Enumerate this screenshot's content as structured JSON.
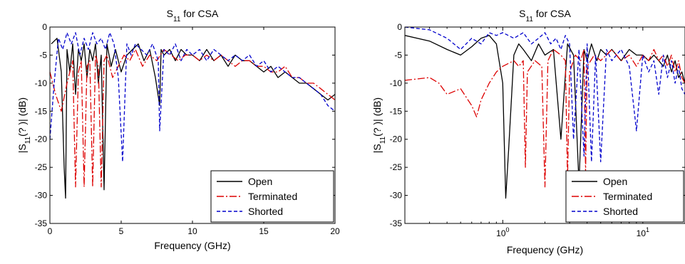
{
  "chart_data": [
    {
      "type": "line",
      "title": "S11 for CSA",
      "title_main": "S",
      "title_sub": "11",
      "title_rest": " for CSA",
      "xlabel": "Frequency (GHz)",
      "ylabel_pre": "|S",
      "ylabel_sub": "11",
      "ylabel_post": "(? )| (dB)",
      "x_scale": "linear",
      "xlim": [
        0,
        20
      ],
      "ylim": [
        -35,
        0
      ],
      "xticks": [
        0,
        5,
        10,
        15,
        20
      ],
      "xtick_labels": [
        "0",
        "5",
        "10",
        "15",
        "20"
      ],
      "yticks": [
        0,
        -5,
        -10,
        -15,
        -20,
        -25,
        -30,
        -35
      ],
      "ytick_labels": [
        "0",
        "-5",
        "-10",
        "-15",
        "-20",
        "-25",
        "-30",
        "-35"
      ],
      "grid": false,
      "legend_position": "bottom-right",
      "series": [
        {
          "name": "Open",
          "color": "#000000",
          "dash": "solid",
          "x": [
            0.1,
            0.5,
            0.8,
            1.0,
            1.1,
            1.2,
            1.4,
            1.6,
            1.8,
            2.0,
            2.2,
            2.4,
            2.6,
            2.8,
            3.0,
            3.2,
            3.4,
            3.6,
            3.8,
            4.0,
            4.3,
            4.6,
            5.0,
            5.4,
            5.8,
            6.2,
            6.6,
            7.0,
            7.4,
            7.7,
            7.8,
            8.0,
            8.4,
            8.8,
            9.2,
            9.6,
            10.0,
            10.5,
            11.0,
            11.5,
            12.0,
            12.5,
            13.0,
            13.5,
            14.0,
            14.5,
            15.0,
            15.5,
            16.0,
            16.5,
            17.0,
            17.5,
            18.0,
            18.5,
            19.0,
            19.5,
            20.0
          ],
          "y": [
            -3,
            -2,
            -8,
            -25,
            -30.5,
            -4,
            -8,
            -3,
            -12,
            -4,
            -6,
            -3,
            -9,
            -4,
            -6,
            -3,
            -10,
            -5,
            -29,
            -3,
            -7,
            -4,
            -8,
            -5,
            -4,
            -3,
            -6,
            -4,
            -9,
            -14,
            -4,
            -5,
            -4,
            -6,
            -4,
            -5,
            -5,
            -6,
            -4,
            -6,
            -5,
            -7,
            -5,
            -6,
            -6,
            -7,
            -8,
            -7,
            -9,
            -8,
            -9,
            -10,
            -10,
            -11,
            -12,
            -13,
            -12
          ]
        },
        {
          "name": "Terminated",
          "color": "#dd0000",
          "dash": "dashdot",
          "x": [
            0.0,
            0.4,
            0.8,
            1.2,
            1.6,
            1.8,
            2.0,
            2.2,
            2.4,
            2.6,
            2.8,
            3.0,
            3.2,
            3.4,
            3.6,
            3.8,
            4.0,
            4.4,
            4.8,
            5.2,
            5.6,
            6.0,
            6.5,
            7.0,
            7.5,
            8.0,
            8.5,
            9.0,
            9.5,
            10.0,
            10.5,
            11.0,
            11.5,
            12.0,
            12.5,
            13.0,
            13.5,
            14.0,
            14.5,
            15.0,
            15.5,
            16.0,
            16.5,
            17.0,
            17.5,
            18.0,
            18.5,
            19.0,
            19.5,
            20.0
          ],
          "y": [
            -8,
            -12,
            -15,
            -10,
            -6,
            -28.5,
            -8,
            -6,
            -28.5,
            -7,
            -6,
            -28.5,
            -5,
            -7,
            -28.5,
            -6,
            -5,
            -9,
            -7,
            -5,
            -6,
            -4,
            -7,
            -5,
            -6,
            -4,
            -5,
            -6,
            -5,
            -5,
            -6,
            -5,
            -6,
            -5,
            -6,
            -7,
            -6,
            -6,
            -7,
            -7,
            -8,
            -8,
            -7,
            -9,
            -9,
            -10,
            -10,
            -11,
            -12,
            -13
          ]
        },
        {
          "name": "Shorted",
          "color": "#0000cc",
          "dash": "dashed",
          "x": [
            0.0,
            0.3,
            0.6,
            0.9,
            1.2,
            1.5,
            1.8,
            2.1,
            2.4,
            2.7,
            3.0,
            3.3,
            3.6,
            3.9,
            4.2,
            4.5,
            4.8,
            5.1,
            5.4,
            5.7,
            6.0,
            6.4,
            6.8,
            7.2,
            7.6,
            7.7,
            8.0,
            8.4,
            8.8,
            9.2,
            9.6,
            10.0,
            10.5,
            11.0,
            11.5,
            12.0,
            12.5,
            13.0,
            13.5,
            14.0,
            14.5,
            15.0,
            15.5,
            16.0,
            16.5,
            17.0,
            17.5,
            18.0,
            18.5,
            19.0,
            19.5,
            20.0
          ],
          "y": [
            -20,
            -10,
            -2,
            -4,
            -1,
            -3,
            -1,
            -5,
            -2,
            -4,
            -1,
            -3,
            -2,
            -4,
            -1,
            -3,
            -9,
            -24,
            -3,
            -5,
            -3,
            -4,
            -5,
            -3,
            -6,
            -18.5,
            -4,
            -5,
            -3,
            -6,
            -4,
            -5,
            -4,
            -6,
            -4,
            -5,
            -6,
            -5,
            -6,
            -5,
            -7,
            -6,
            -8,
            -7,
            -8,
            -9,
            -9,
            -10,
            -11,
            -12,
            -14,
            -15
          ]
        }
      ]
    },
    {
      "type": "line",
      "title": "S11 for CSA",
      "title_main": "S",
      "title_sub": "11",
      "title_rest": " for CSA",
      "xlabel": "Frequency (GHz)",
      "ylabel_pre": "|S",
      "ylabel_sub": "11",
      "ylabel_post": "(? )| (dB)",
      "x_scale": "log",
      "xlim": [
        0.2,
        20
      ],
      "ylim": [
        -35,
        0
      ],
      "xticks": [
        1,
        10
      ],
      "xtick_label_base": "10",
      "xtick_label_exp": [
        "0",
        "1"
      ],
      "yticks": [
        0,
        -5,
        -10,
        -15,
        -20,
        -25,
        -30,
        -35
      ],
      "ytick_labels": [
        "0",
        "-5",
        "-10",
        "-15",
        "-20",
        "-25",
        "-30",
        "-35"
      ],
      "grid": false,
      "legend_position": "bottom-right",
      "series": [
        {
          "name": "Open",
          "color": "#000000",
          "dash": "solid",
          "x": [
            0.2,
            0.3,
            0.4,
            0.5,
            0.6,
            0.7,
            0.8,
            0.9,
            1.0,
            1.05,
            1.1,
            1.2,
            1.3,
            1.4,
            1.6,
            1.8,
            2.0,
            2.3,
            2.6,
            2.9,
            3.2,
            3.5,
            3.8,
            4.0,
            4.3,
            4.7,
            5.0,
            5.5,
            6.0,
            7.0,
            8.0,
            9.0,
            10.0,
            11.0,
            12.0,
            13.0,
            14.0,
            15.0,
            16.0,
            17.0,
            18.0,
            19.0,
            20.0
          ],
          "y": [
            -1.5,
            -2.5,
            -4,
            -5,
            -3.5,
            -2,
            -1.5,
            -3,
            -10,
            -30.5,
            -22,
            -5,
            -3,
            -4,
            -6,
            -3,
            -5,
            -4,
            -20,
            -3,
            -5,
            -28,
            -4,
            -6,
            -3,
            -6,
            -4,
            -5,
            -4,
            -6,
            -4,
            -5,
            -5,
            -6,
            -5,
            -6,
            -7,
            -5,
            -8,
            -6,
            -9,
            -8,
            -10
          ]
        },
        {
          "name": "Terminated",
          "color": "#dd0000",
          "dash": "dashdot",
          "x": [
            0.2,
            0.3,
            0.35,
            0.4,
            0.5,
            0.6,
            0.65,
            0.7,
            0.8,
            0.9,
            1.0,
            1.2,
            1.3,
            1.4,
            1.45,
            1.5,
            1.7,
            1.9,
            2.0,
            2.1,
            2.3,
            2.6,
            2.8,
            2.9,
            3.0,
            3.3,
            3.6,
            3.8,
            3.9,
            4.0,
            4.5,
            5.0,
            6.0,
            7.0,
            8.0,
            9.0,
            10.0,
            11.0,
            12.0,
            13.0,
            14.0,
            15.0,
            16.0,
            17.0,
            18.0,
            19.0,
            20.0
          ],
          "y": [
            -9.5,
            -9,
            -10,
            -12,
            -11,
            -14,
            -16,
            -13,
            -10,
            -8,
            -7,
            -6,
            -7,
            -6,
            -25,
            -8,
            -6,
            -7,
            -28.5,
            -6,
            -4,
            -5,
            -6,
            -27,
            -8,
            -5,
            -6,
            -4,
            -26,
            -7,
            -5,
            -6,
            -4,
            -6,
            -5,
            -7,
            -5,
            -6,
            -4,
            -6,
            -5,
            -7,
            -5,
            -8,
            -6,
            -9,
            -10
          ]
        },
        {
          "name": "Shorted",
          "color": "#0000cc",
          "dash": "dashed",
          "x": [
            0.2,
            0.3,
            0.4,
            0.5,
            0.6,
            0.7,
            0.8,
            0.9,
            1.0,
            1.2,
            1.4,
            1.6,
            1.8,
            2.0,
            2.2,
            2.4,
            2.6,
            2.8,
            3.0,
            3.2,
            3.5,
            3.8,
            4.0,
            4.3,
            4.6,
            5.0,
            5.5,
            6.0,
            7.0,
            8.0,
            9.0,
            10.0,
            11.0,
            12.0,
            13.0,
            14.0,
            15.0,
            16.0,
            17.0,
            18.0,
            19.0,
            20.0
          ],
          "y": [
            0,
            -0.5,
            -2,
            -4,
            -2,
            -3,
            -1,
            -1.5,
            -1,
            -2,
            -1,
            -3,
            -2,
            -1,
            -3,
            -2,
            -4,
            -1.5,
            -3,
            -20,
            -4,
            -23,
            -3,
            -24,
            -5,
            -24,
            -4,
            -6,
            -4,
            -7,
            -18.5,
            -5,
            -8,
            -6,
            -12,
            -5,
            -9,
            -6,
            -10,
            -7,
            -11,
            -12
          ]
        }
      ]
    }
  ]
}
